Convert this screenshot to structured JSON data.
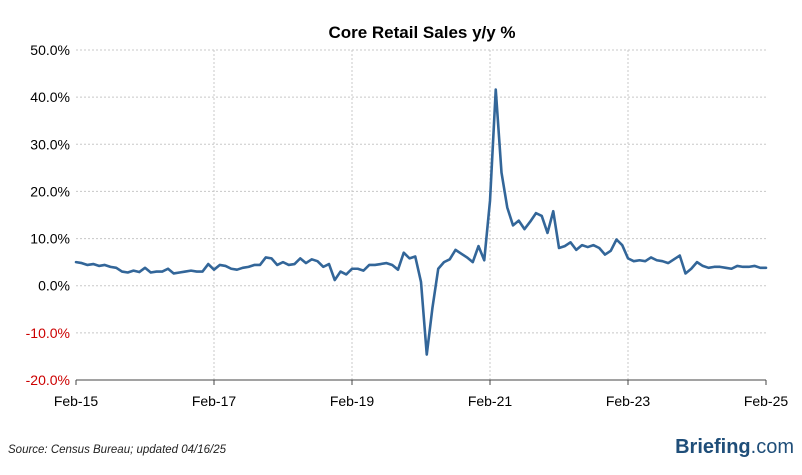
{
  "chart_data": {
    "type": "line",
    "title": "Core Retail Sales y/y %",
    "x_ticks": [
      "Feb-15",
      "Feb-17",
      "Feb-19",
      "Feb-21",
      "Feb-23",
      "Feb-25"
    ],
    "y_ticks": [
      "50.0%",
      "40.0%",
      "30.0%",
      "20.0%",
      "10.0%",
      "0.0%",
      "-10.0%",
      "-20.0%"
    ],
    "ylim": [
      -20,
      50
    ],
    "xlim": [
      "2015-02",
      "2025-02"
    ],
    "grid": true,
    "colors": {
      "series": "#336699",
      "negative_tick": "#cc0000",
      "positive_tick": "#000000"
    },
    "series": [
      {
        "points": [
          [
            "2015-02",
            5.0
          ],
          [
            "2015-03",
            4.8
          ],
          [
            "2015-04",
            4.4
          ],
          [
            "2015-05",
            4.6
          ],
          [
            "2015-06",
            4.2
          ],
          [
            "2015-07",
            4.4
          ],
          [
            "2015-08",
            4.0
          ],
          [
            "2015-09",
            3.8
          ],
          [
            "2015-10",
            3.0
          ],
          [
            "2015-11",
            2.8
          ],
          [
            "2015-12",
            3.2
          ],
          [
            "2016-01",
            2.9
          ],
          [
            "2016-02",
            3.8
          ],
          [
            "2016-03",
            2.8
          ],
          [
            "2016-04",
            3.0
          ],
          [
            "2016-05",
            3.0
          ],
          [
            "2016-06",
            3.6
          ],
          [
            "2016-07",
            2.6
          ],
          [
            "2016-08",
            2.8
          ],
          [
            "2016-09",
            3.0
          ],
          [
            "2016-10",
            3.2
          ],
          [
            "2016-11",
            3.0
          ],
          [
            "2016-12",
            3.0
          ],
          [
            "2017-01",
            4.6
          ],
          [
            "2017-02",
            3.4
          ],
          [
            "2017-03",
            4.4
          ],
          [
            "2017-04",
            4.2
          ],
          [
            "2017-05",
            3.6
          ],
          [
            "2017-06",
            3.4
          ],
          [
            "2017-07",
            3.8
          ],
          [
            "2017-08",
            4.0
          ],
          [
            "2017-09",
            4.4
          ],
          [
            "2017-10",
            4.4
          ],
          [
            "2017-11",
            6.0
          ],
          [
            "2017-12",
            5.8
          ],
          [
            "2018-01",
            4.4
          ],
          [
            "2018-02",
            5.0
          ],
          [
            "2018-03",
            4.4
          ],
          [
            "2018-04",
            4.6
          ],
          [
            "2018-05",
            5.8
          ],
          [
            "2018-06",
            4.8
          ],
          [
            "2018-07",
            5.6
          ],
          [
            "2018-08",
            5.2
          ],
          [
            "2018-09",
            4.0
          ],
          [
            "2018-10",
            4.6
          ],
          [
            "2018-11",
            1.2
          ],
          [
            "2018-12",
            3.0
          ],
          [
            "2019-01",
            2.4
          ],
          [
            "2019-02",
            3.6
          ],
          [
            "2019-03",
            3.6
          ],
          [
            "2019-04",
            3.2
          ],
          [
            "2019-05",
            4.4
          ],
          [
            "2019-06",
            4.4
          ],
          [
            "2019-07",
            4.6
          ],
          [
            "2019-08",
            4.8
          ],
          [
            "2019-09",
            4.4
          ],
          [
            "2019-10",
            3.4
          ],
          [
            "2019-11",
            7.0
          ],
          [
            "2019-12",
            5.8
          ],
          [
            "2020-01",
            6.2
          ],
          [
            "2020-02",
            0.8
          ],
          [
            "2020-03",
            -14.6
          ],
          [
            "2020-04",
            -4.6
          ],
          [
            "2020-05",
            3.6
          ],
          [
            "2020-06",
            5.0
          ],
          [
            "2020-07",
            5.6
          ],
          [
            "2020-08",
            7.6
          ],
          [
            "2020-09",
            6.8
          ],
          [
            "2020-10",
            6.0
          ],
          [
            "2020-11",
            5.0
          ],
          [
            "2020-12",
            8.4
          ],
          [
            "2021-01",
            5.4
          ],
          [
            "2021-02",
            18.0
          ],
          [
            "2021-03",
            41.6
          ],
          [
            "2021-04",
            24.0
          ],
          [
            "2021-05",
            16.6
          ],
          [
            "2021-06",
            12.8
          ],
          [
            "2021-07",
            13.8
          ],
          [
            "2021-08",
            12.0
          ],
          [
            "2021-09",
            13.6
          ],
          [
            "2021-10",
            15.4
          ],
          [
            "2021-11",
            14.8
          ],
          [
            "2021-12",
            11.2
          ],
          [
            "2022-01",
            15.8
          ],
          [
            "2022-02",
            8.0
          ],
          [
            "2022-03",
            8.4
          ],
          [
            "2022-04",
            9.2
          ],
          [
            "2022-05",
            7.6
          ],
          [
            "2022-06",
            8.6
          ],
          [
            "2022-07",
            8.2
          ],
          [
            "2022-08",
            8.6
          ],
          [
            "2022-09",
            8.0
          ],
          [
            "2022-10",
            6.6
          ],
          [
            "2022-11",
            7.4
          ],
          [
            "2022-12",
            9.8
          ],
          [
            "2023-01",
            8.6
          ],
          [
            "2023-02",
            5.8
          ],
          [
            "2023-03",
            5.2
          ],
          [
            "2023-04",
            5.4
          ],
          [
            "2023-05",
            5.2
          ],
          [
            "2023-06",
            6.0
          ],
          [
            "2023-07",
            5.4
          ],
          [
            "2023-08",
            5.2
          ],
          [
            "2023-09",
            4.8
          ],
          [
            "2023-10",
            5.6
          ],
          [
            "2023-11",
            6.4
          ],
          [
            "2023-12",
            2.6
          ],
          [
            "2024-01",
            3.6
          ],
          [
            "2024-02",
            5.0
          ],
          [
            "2024-03",
            4.2
          ],
          [
            "2024-04",
            3.8
          ],
          [
            "2024-05",
            4.0
          ],
          [
            "2024-06",
            4.0
          ],
          [
            "2024-07",
            3.8
          ],
          [
            "2024-08",
            3.6
          ],
          [
            "2024-09",
            4.2
          ],
          [
            "2024-10",
            4.0
          ],
          [
            "2024-11",
            4.0
          ],
          [
            "2024-12",
            4.2
          ],
          [
            "2025-01",
            3.8
          ],
          [
            "2025-02",
            3.8
          ]
        ]
      }
    ]
  },
  "footer": {
    "source": "Source:  Census Bureau;  updated  04/16/25",
    "brand_name": "Briefing",
    "brand_tld": ".com"
  }
}
